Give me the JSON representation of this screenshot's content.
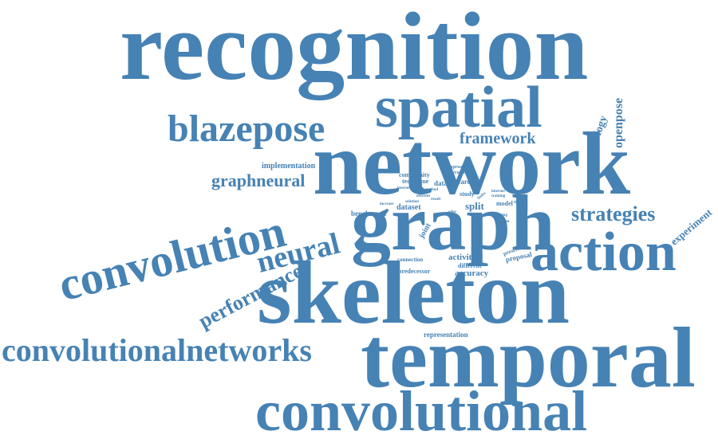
{
  "color": "#4682B4",
  "words": {
    "recognition": "recognition",
    "spatial": "spatial",
    "blazepose": "blazepose",
    "network": "network",
    "framework": "framework",
    "graph": "graph",
    "convolution": "convolution",
    "neural": "neural",
    "graphneural": "graphneural",
    "strategies": "strategies",
    "action": "action",
    "skeleton": "skeleton",
    "performance": "performance",
    "convolutionalnetworks": "convolutionalnetworks",
    "temporal": "temporal",
    "convolutional": "convolutional",
    "openpose": "openpose",
    "topology": "topology",
    "experiment": "experiment",
    "implementation": "implementation",
    "community": "community",
    "technique": "technique",
    "research": "research",
    "approach": "approach",
    "operation": "operation",
    "data": "data",
    "study": "study",
    "benchmark": "benchmark",
    "dataset": "dataset",
    "split": "split",
    "model": "model",
    "joint": "joint",
    "human": "human",
    "activities": "activities",
    "different": "different",
    "accuracy": "accuracy",
    "connection": "connection",
    "predecessor": "predecessor",
    "present": "present",
    "proposal": "proposal",
    "representation": "representation",
    "increase": "increase",
    "solution": "solution",
    "efficient": "efficient",
    "result": "result",
    "method": "method",
    "internet": "internet",
    "living": "living",
    "training": "training",
    "distance": "distance",
    "system": "system",
    "limbs": "limbs",
    "edge": "edge"
  }
}
